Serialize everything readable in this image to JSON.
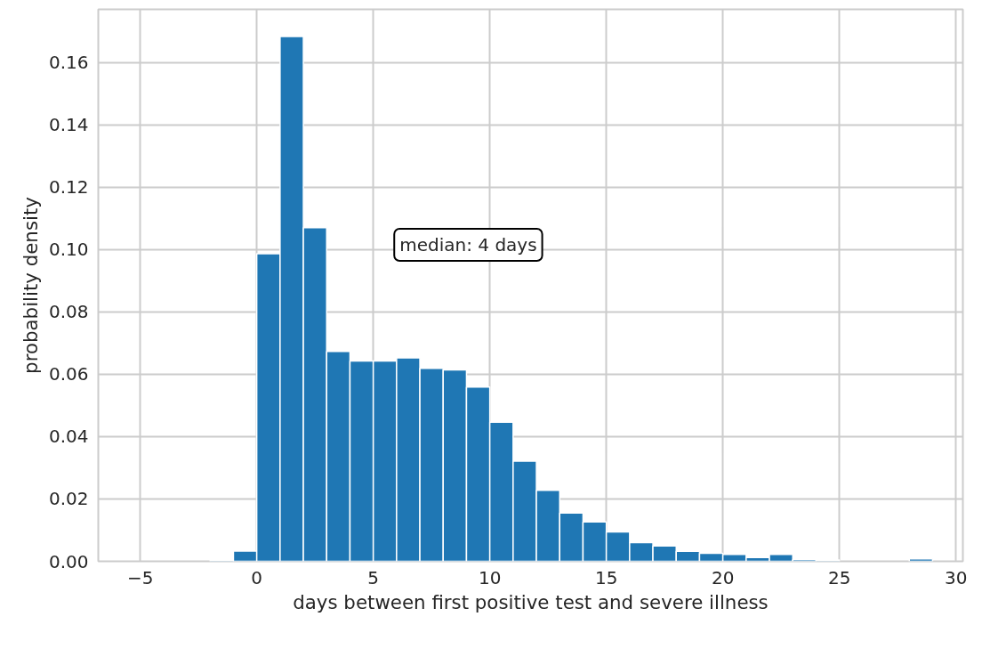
{
  "chart_data": {
    "type": "histogram",
    "xlabel": "days between first positive test and severe illness",
    "ylabel": "probability density",
    "annotations": [
      "median: 4 days"
    ],
    "bins": [
      -2,
      -1,
      0,
      1,
      2,
      3,
      4,
      5,
      6,
      7,
      8,
      9,
      10,
      11,
      12,
      13,
      14,
      15,
      16,
      17,
      18,
      19,
      20,
      21,
      22,
      23,
      24,
      25,
      26,
      27,
      28,
      29
    ],
    "values": [
      0.0004,
      0.0033,
      0.0986,
      0.1683,
      0.107,
      0.0673,
      0.0642,
      0.0642,
      0.0652,
      0.0619,
      0.0614,
      0.0559,
      0.0446,
      0.0321,
      0.0228,
      0.0155,
      0.0126,
      0.0094,
      0.006,
      0.0049,
      0.0032,
      0.0026,
      0.0022,
      0.0012,
      0.0022,
      0.0006,
      0.0004,
      0,
      0,
      0,
      0.0008
    ],
    "color": "#1f77b4",
    "xlim": [
      -6.8,
      30.3
    ],
    "ylim": [
      0,
      0.177
    ],
    "xticks": [
      {
        "value": -5,
        "label": "−5"
      },
      0,
      5,
      10,
      15,
      20,
      25,
      30
    ],
    "yticks": [
      {
        "value": 0,
        "label": "0.00"
      },
      {
        "value": 0.02,
        "label": "0.02"
      },
      {
        "value": 0.04,
        "label": "0.04"
      },
      {
        "value": 0.06,
        "label": "0.06"
      },
      {
        "value": 0.08,
        "label": "0.08"
      },
      {
        "value": 0.1,
        "label": "0.10"
      },
      {
        "value": 0.12,
        "label": "0.12"
      },
      {
        "value": 0.14,
        "label": "0.14"
      },
      {
        "value": 0.16,
        "label": "0.16"
      }
    ],
    "grid": true
  }
}
